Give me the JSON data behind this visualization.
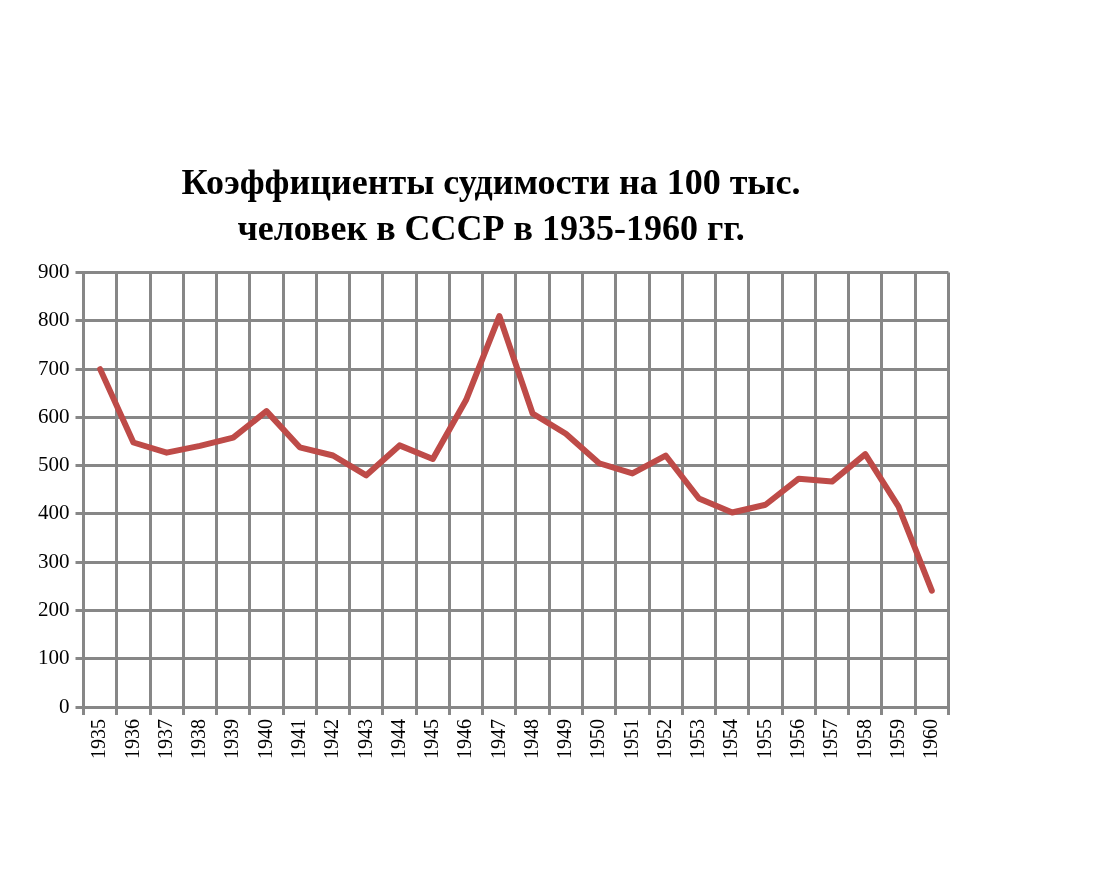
{
  "chart_data": {
    "type": "line",
    "title": "Коэффициенты судимости на 100 тыс. человек в СССР в 1935-1960 гг.",
    "categories": [
      "1935",
      "1936",
      "1937",
      "1938",
      "1939",
      "1940",
      "1941",
      "1942",
      "1943",
      "1944",
      "1945",
      "1946",
      "1947",
      "1948",
      "1949",
      "1950",
      "1951",
      "1952",
      "1953",
      "1954",
      "1955",
      "1956",
      "1957",
      "1958",
      "1959",
      "1960"
    ],
    "series": [
      {
        "color": "#be4b48",
        "values": [
          700,
          548,
          527,
          541,
          558,
          613,
          538,
          521,
          480,
          542,
          514,
          636,
          810,
          608,
          566,
          505,
          484,
          521,
          432,
          403,
          419,
          473,
          467,
          524,
          415,
          241
        ]
      }
    ],
    "ylim": [
      0,
      900
    ],
    "yticks": [
      0,
      100,
      200,
      300,
      400,
      500,
      600,
      700,
      800,
      900
    ],
    "grid": true,
    "marker": "none",
    "line_style": "solid"
  }
}
